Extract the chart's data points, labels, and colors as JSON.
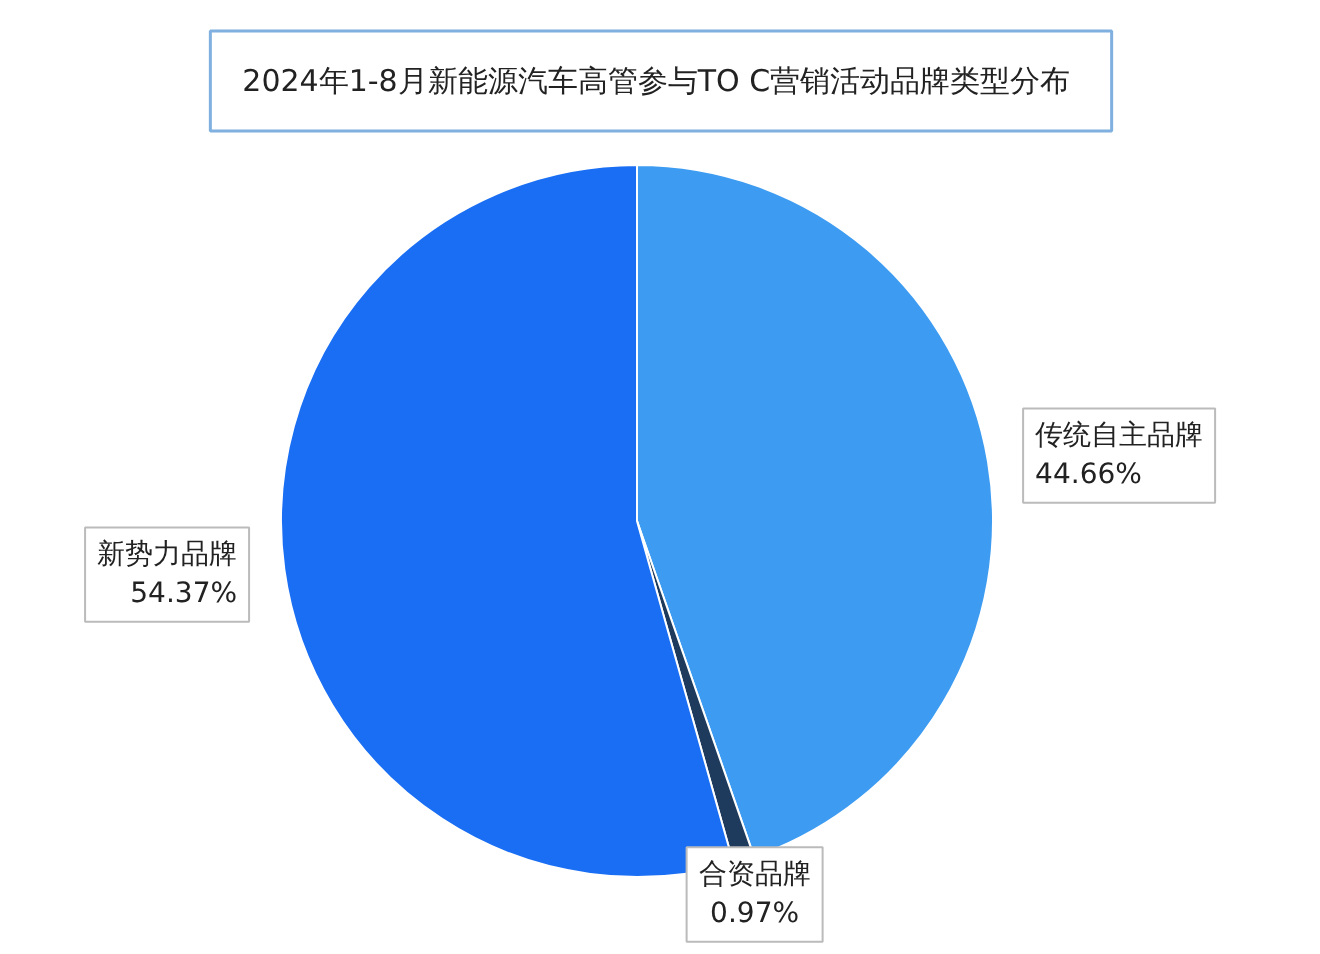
{
  "chart_data": {
    "type": "pie",
    "title": "2024年1-8月新能源汽车高管参与TO  C营销活动品牌类型分布",
    "categories": [
      "传统自主品牌",
      "合资品牌",
      "新势力品牌"
    ],
    "values": [
      44.66,
      0.97,
      54.37
    ],
    "value_labels": [
      "44.66%",
      "0.97%",
      "54.37%"
    ],
    "colors": [
      "#3d9cf2",
      "#1e3a5c",
      "#1a6ef4"
    ]
  }
}
